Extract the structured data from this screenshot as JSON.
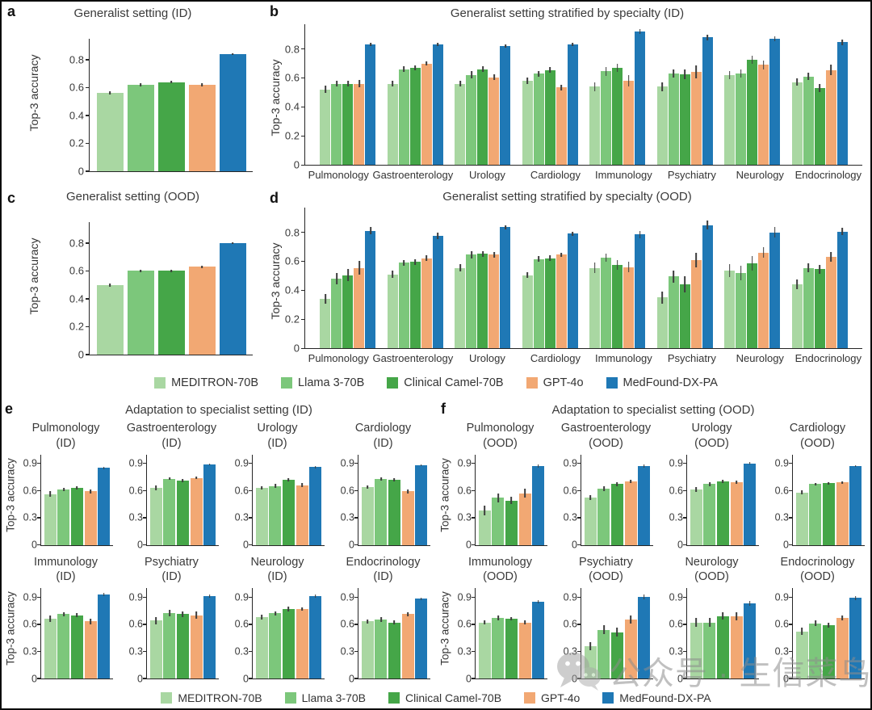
{
  "figure": {
    "watermark": {
      "text": "公众号 · 生信菜鸟团",
      "icon": "wechat-icon"
    }
  },
  "palette": [
    "#a9d7a2",
    "#7cc77b",
    "#45a648",
    "#f2a873",
    "#1f78b5"
  ],
  "series_names": [
    "MEDITRON-70B",
    "Llama 3-70B",
    "Clinical Camel-70B",
    "GPT-4o",
    "MedFound-DX-PA"
  ],
  "legend": {
    "items": [
      {
        "label": "MEDITRON-70B",
        "color": "#a9d7a2"
      },
      {
        "label": "Llama 3-70B",
        "color": "#7cc77b"
      },
      {
        "label": "Clinical Camel-70B",
        "color": "#45a648"
      },
      {
        "label": "GPT-4o",
        "color": "#f2a873"
      },
      {
        "label": "MedFound-DX-PA",
        "color": "#1f78b5"
      }
    ]
  },
  "chart_data": [
    {
      "panel": "a",
      "type": "bar",
      "kind": "single",
      "title": "Generalist setting (ID)",
      "ylabel": "Top-3 accuracy",
      "yticks": [
        0,
        0.2,
        0.4,
        0.6,
        0.8
      ],
      "ylim": [
        0,
        0.95
      ],
      "grid": false,
      "models": [
        "MEDITRON-70B",
        "Llama 3-70B",
        "Clinical Camel-70B",
        "GPT-4o",
        "MedFound-DX-PA"
      ],
      "values": [
        0.56,
        0.62,
        0.64,
        0.62,
        0.84
      ],
      "errors": [
        0.012,
        0.01,
        0.008,
        0.01,
        0.006
      ]
    },
    {
      "panel": "b",
      "type": "bar",
      "kind": "grouped",
      "title": "Generalist setting stratified by specialty (ID)",
      "ylabel": "Top-3 accuracy",
      "yticks": [
        0,
        0.2,
        0.4,
        0.6,
        0.8
      ],
      "ylim": [
        0,
        0.97
      ],
      "grid": false,
      "categories": [
        "Pulmonology",
        "Gastroenterology",
        "Urology",
        "Cardiology",
        "Immunology",
        "Psychiatry",
        "Neurology",
        "Endocrinology"
      ],
      "series": [
        {
          "name": "MEDITRON-70B",
          "values": [
            0.52,
            0.56,
            0.56,
            0.58,
            0.54,
            0.54,
            0.62,
            0.57
          ],
          "errors": [
            0.025,
            0.02,
            0.02,
            0.02,
            0.03,
            0.03,
            0.03,
            0.025
          ]
        },
        {
          "name": "Llama 3-70B",
          "values": [
            0.56,
            0.66,
            0.62,
            0.63,
            0.645,
            0.63,
            0.63,
            0.61
          ],
          "errors": [
            0.02,
            0.02,
            0.025,
            0.02,
            0.03,
            0.03,
            0.03,
            0.025
          ]
        },
        {
          "name": "Clinical Camel-70B",
          "values": [
            0.56,
            0.67,
            0.66,
            0.655,
            0.67,
            0.625,
            0.725,
            0.53
          ],
          "errors": [
            0.02,
            0.015,
            0.02,
            0.02,
            0.03,
            0.035,
            0.03,
            0.03
          ]
        },
        {
          "name": "GPT-4o",
          "values": [
            0.56,
            0.7,
            0.605,
            0.535,
            0.58,
            0.64,
            0.69,
            0.655
          ],
          "errors": [
            0.025,
            0.015,
            0.02,
            0.02,
            0.04,
            0.045,
            0.03,
            0.035
          ]
        },
        {
          "name": "MedFound-DX-PA",
          "values": [
            0.83,
            0.83,
            0.82,
            0.83,
            0.92,
            0.88,
            0.87,
            0.845
          ],
          "errors": [
            0.012,
            0.012,
            0.012,
            0.012,
            0.015,
            0.02,
            0.015,
            0.02
          ]
        }
      ]
    },
    {
      "panel": "c",
      "type": "bar",
      "kind": "single",
      "title": "Generalist setting (OOD)",
      "ylabel": "Top-3 accuracy",
      "yticks": [
        0,
        0.2,
        0.4,
        0.6,
        0.8
      ],
      "ylim": [
        0,
        0.95
      ],
      "grid": false,
      "models": [
        "MEDITRON-70B",
        "Llama 3-70B",
        "Clinical Camel-70B",
        "GPT-4o",
        "MedFound-DX-PA"
      ],
      "values": [
        0.5,
        0.6,
        0.6,
        0.63,
        0.8
      ],
      "errors": [
        0.012,
        0.01,
        0.01,
        0.01,
        0.007
      ]
    },
    {
      "panel": "d",
      "type": "bar",
      "kind": "grouped",
      "title": "Generalist setting stratified by specialty (OOD)",
      "ylabel": "Top-3 accuracy",
      "yticks": [
        0,
        0.2,
        0.4,
        0.6,
        0.8
      ],
      "ylim": [
        0,
        0.97
      ],
      "grid": false,
      "categories": [
        "Pulmonology",
        "Gastroenterology",
        "Urology",
        "Cardiology",
        "Immunology",
        "Psychiatry",
        "Neurology",
        "Endocrinology"
      ],
      "series": [
        {
          "name": "MEDITRON-70B",
          "values": [
            0.34,
            0.51,
            0.555,
            0.505,
            0.555,
            0.35,
            0.535,
            0.44
          ],
          "errors": [
            0.035,
            0.025,
            0.025,
            0.02,
            0.035,
            0.04,
            0.045,
            0.035
          ]
        },
        {
          "name": "Llama 3-70B",
          "values": [
            0.48,
            0.59,
            0.645,
            0.615,
            0.625,
            0.495,
            0.52,
            0.555
          ],
          "errors": [
            0.04,
            0.02,
            0.025,
            0.02,
            0.03,
            0.04,
            0.05,
            0.03
          ]
        },
        {
          "name": "Clinical Camel-70B",
          "values": [
            0.505,
            0.595,
            0.65,
            0.62,
            0.575,
            0.44,
            0.585,
            0.545
          ],
          "errors": [
            0.04,
            0.02,
            0.02,
            0.02,
            0.035,
            0.055,
            0.05,
            0.03
          ]
        },
        {
          "name": "GPT-4o",
          "values": [
            0.555,
            0.62,
            0.645,
            0.645,
            0.56,
            0.61,
            0.66,
            0.63
          ],
          "errors": [
            0.045,
            0.02,
            0.02,
            0.015,
            0.035,
            0.05,
            0.035,
            0.035
          ]
        },
        {
          "name": "MedFound-DX-PA",
          "values": [
            0.81,
            0.775,
            0.835,
            0.79,
            0.785,
            0.85,
            0.8,
            0.805
          ],
          "errors": [
            0.025,
            0.02,
            0.015,
            0.015,
            0.025,
            0.03,
            0.035,
            0.025
          ]
        }
      ]
    },
    {
      "panel": "e",
      "type": "bar",
      "kind": "mini-grid",
      "title": "Adaptation to specialist setting (ID)",
      "ylabel": "Top-3 accuracy",
      "yticks": [
        0,
        0.3,
        0.6,
        0.9
      ],
      "ylim": [
        0,
        1.0
      ],
      "grid": false,
      "models": [
        "MEDITRON-70B",
        "Llama 3-70B",
        "Clinical Camel-70B",
        "GPT-4o",
        "MedFound-DX-PA"
      ],
      "charts": [
        {
          "name": "Pulmonology",
          "tag": "(ID)",
          "values": [
            0.56,
            0.61,
            0.63,
            0.59,
            0.85
          ],
          "errors": [
            0.03,
            0.02,
            0.02,
            0.02,
            0.015
          ]
        },
        {
          "name": "Gastroenterology",
          "tag": "(ID)",
          "values": [
            0.63,
            0.73,
            0.71,
            0.74,
            0.89
          ],
          "errors": [
            0.025,
            0.015,
            0.02,
            0.015,
            0.01
          ]
        },
        {
          "name": "Urology",
          "tag": "(ID)",
          "values": [
            0.63,
            0.65,
            0.72,
            0.66,
            0.86
          ],
          "errors": [
            0.02,
            0.02,
            0.02,
            0.02,
            0.015
          ]
        },
        {
          "name": "Cardiology",
          "tag": "(ID)",
          "values": [
            0.64,
            0.73,
            0.72,
            0.59,
            0.88
          ],
          "errors": [
            0.02,
            0.02,
            0.02,
            0.02,
            0.012
          ]
        },
        {
          "name": "Immunology",
          "tag": "(ID)",
          "values": [
            0.66,
            0.71,
            0.7,
            0.63,
            0.93
          ],
          "errors": [
            0.035,
            0.025,
            0.025,
            0.03,
            0.02
          ]
        },
        {
          "name": "Psychiatry",
          "tag": "(ID)",
          "values": [
            0.64,
            0.72,
            0.71,
            0.7,
            0.91
          ],
          "errors": [
            0.04,
            0.035,
            0.035,
            0.04,
            0.02
          ]
        },
        {
          "name": "Neurology",
          "tag": "(ID)",
          "values": [
            0.68,
            0.72,
            0.77,
            0.77,
            0.91
          ],
          "errors": [
            0.025,
            0.025,
            0.025,
            0.02,
            0.015
          ]
        },
        {
          "name": "Endocrinology",
          "tag": "(ID)",
          "values": [
            0.63,
            0.65,
            0.62,
            0.71,
            0.88
          ],
          "errors": [
            0.025,
            0.025,
            0.025,
            0.025,
            0.015
          ]
        }
      ]
    },
    {
      "panel": "f",
      "type": "bar",
      "kind": "mini-grid",
      "title": "Adaptation to specialist setting (OOD)",
      "ylabel": "Top-3 accuracy",
      "yticks": [
        0,
        0.3,
        0.6,
        0.9
      ],
      "ylim": [
        0,
        1.0
      ],
      "grid": false,
      "models": [
        "MEDITRON-70B",
        "Llama 3-70B",
        "Clinical Camel-70B",
        "GPT-4o",
        "MedFound-DX-PA"
      ],
      "charts": [
        {
          "name": "Pulmonology",
          "tag": "(OOD)",
          "values": [
            0.38,
            0.52,
            0.49,
            0.57,
            0.87
          ],
          "errors": [
            0.05,
            0.05,
            0.04,
            0.05,
            0.02
          ]
        },
        {
          "name": "Gastroenterology",
          "tag": "(OOD)",
          "values": [
            0.52,
            0.62,
            0.67,
            0.7,
            0.87
          ],
          "errors": [
            0.025,
            0.025,
            0.02,
            0.02,
            0.015
          ]
        },
        {
          "name": "Urology",
          "tag": "(OOD)",
          "values": [
            0.61,
            0.67,
            0.7,
            0.69,
            0.9
          ],
          "errors": [
            0.025,
            0.02,
            0.02,
            0.02,
            0.012
          ]
        },
        {
          "name": "Cardiology",
          "tag": "(OOD)",
          "values": [
            0.58,
            0.67,
            0.68,
            0.69,
            0.87
          ],
          "errors": [
            0.02,
            0.015,
            0.015,
            0.015,
            0.012
          ]
        },
        {
          "name": "Immunology",
          "tag": "(OOD)",
          "values": [
            0.62,
            0.67,
            0.66,
            0.62,
            0.85
          ],
          "errors": [
            0.025,
            0.025,
            0.02,
            0.025,
            0.02
          ]
        },
        {
          "name": "Psychiatry",
          "tag": "(OOD)",
          "values": [
            0.36,
            0.54,
            0.51,
            0.65,
            0.9
          ],
          "errors": [
            0.045,
            0.045,
            0.05,
            0.045,
            0.025
          ]
        },
        {
          "name": "Neurology",
          "tag": "(OOD)",
          "values": [
            0.62,
            0.62,
            0.69,
            0.69,
            0.83
          ],
          "errors": [
            0.05,
            0.05,
            0.04,
            0.045,
            0.03
          ]
        },
        {
          "name": "Endocrinology",
          "tag": "(OOD)",
          "values": [
            0.52,
            0.61,
            0.59,
            0.67,
            0.89
          ],
          "errors": [
            0.04,
            0.03,
            0.03,
            0.025,
            0.02
          ]
        }
      ]
    }
  ]
}
